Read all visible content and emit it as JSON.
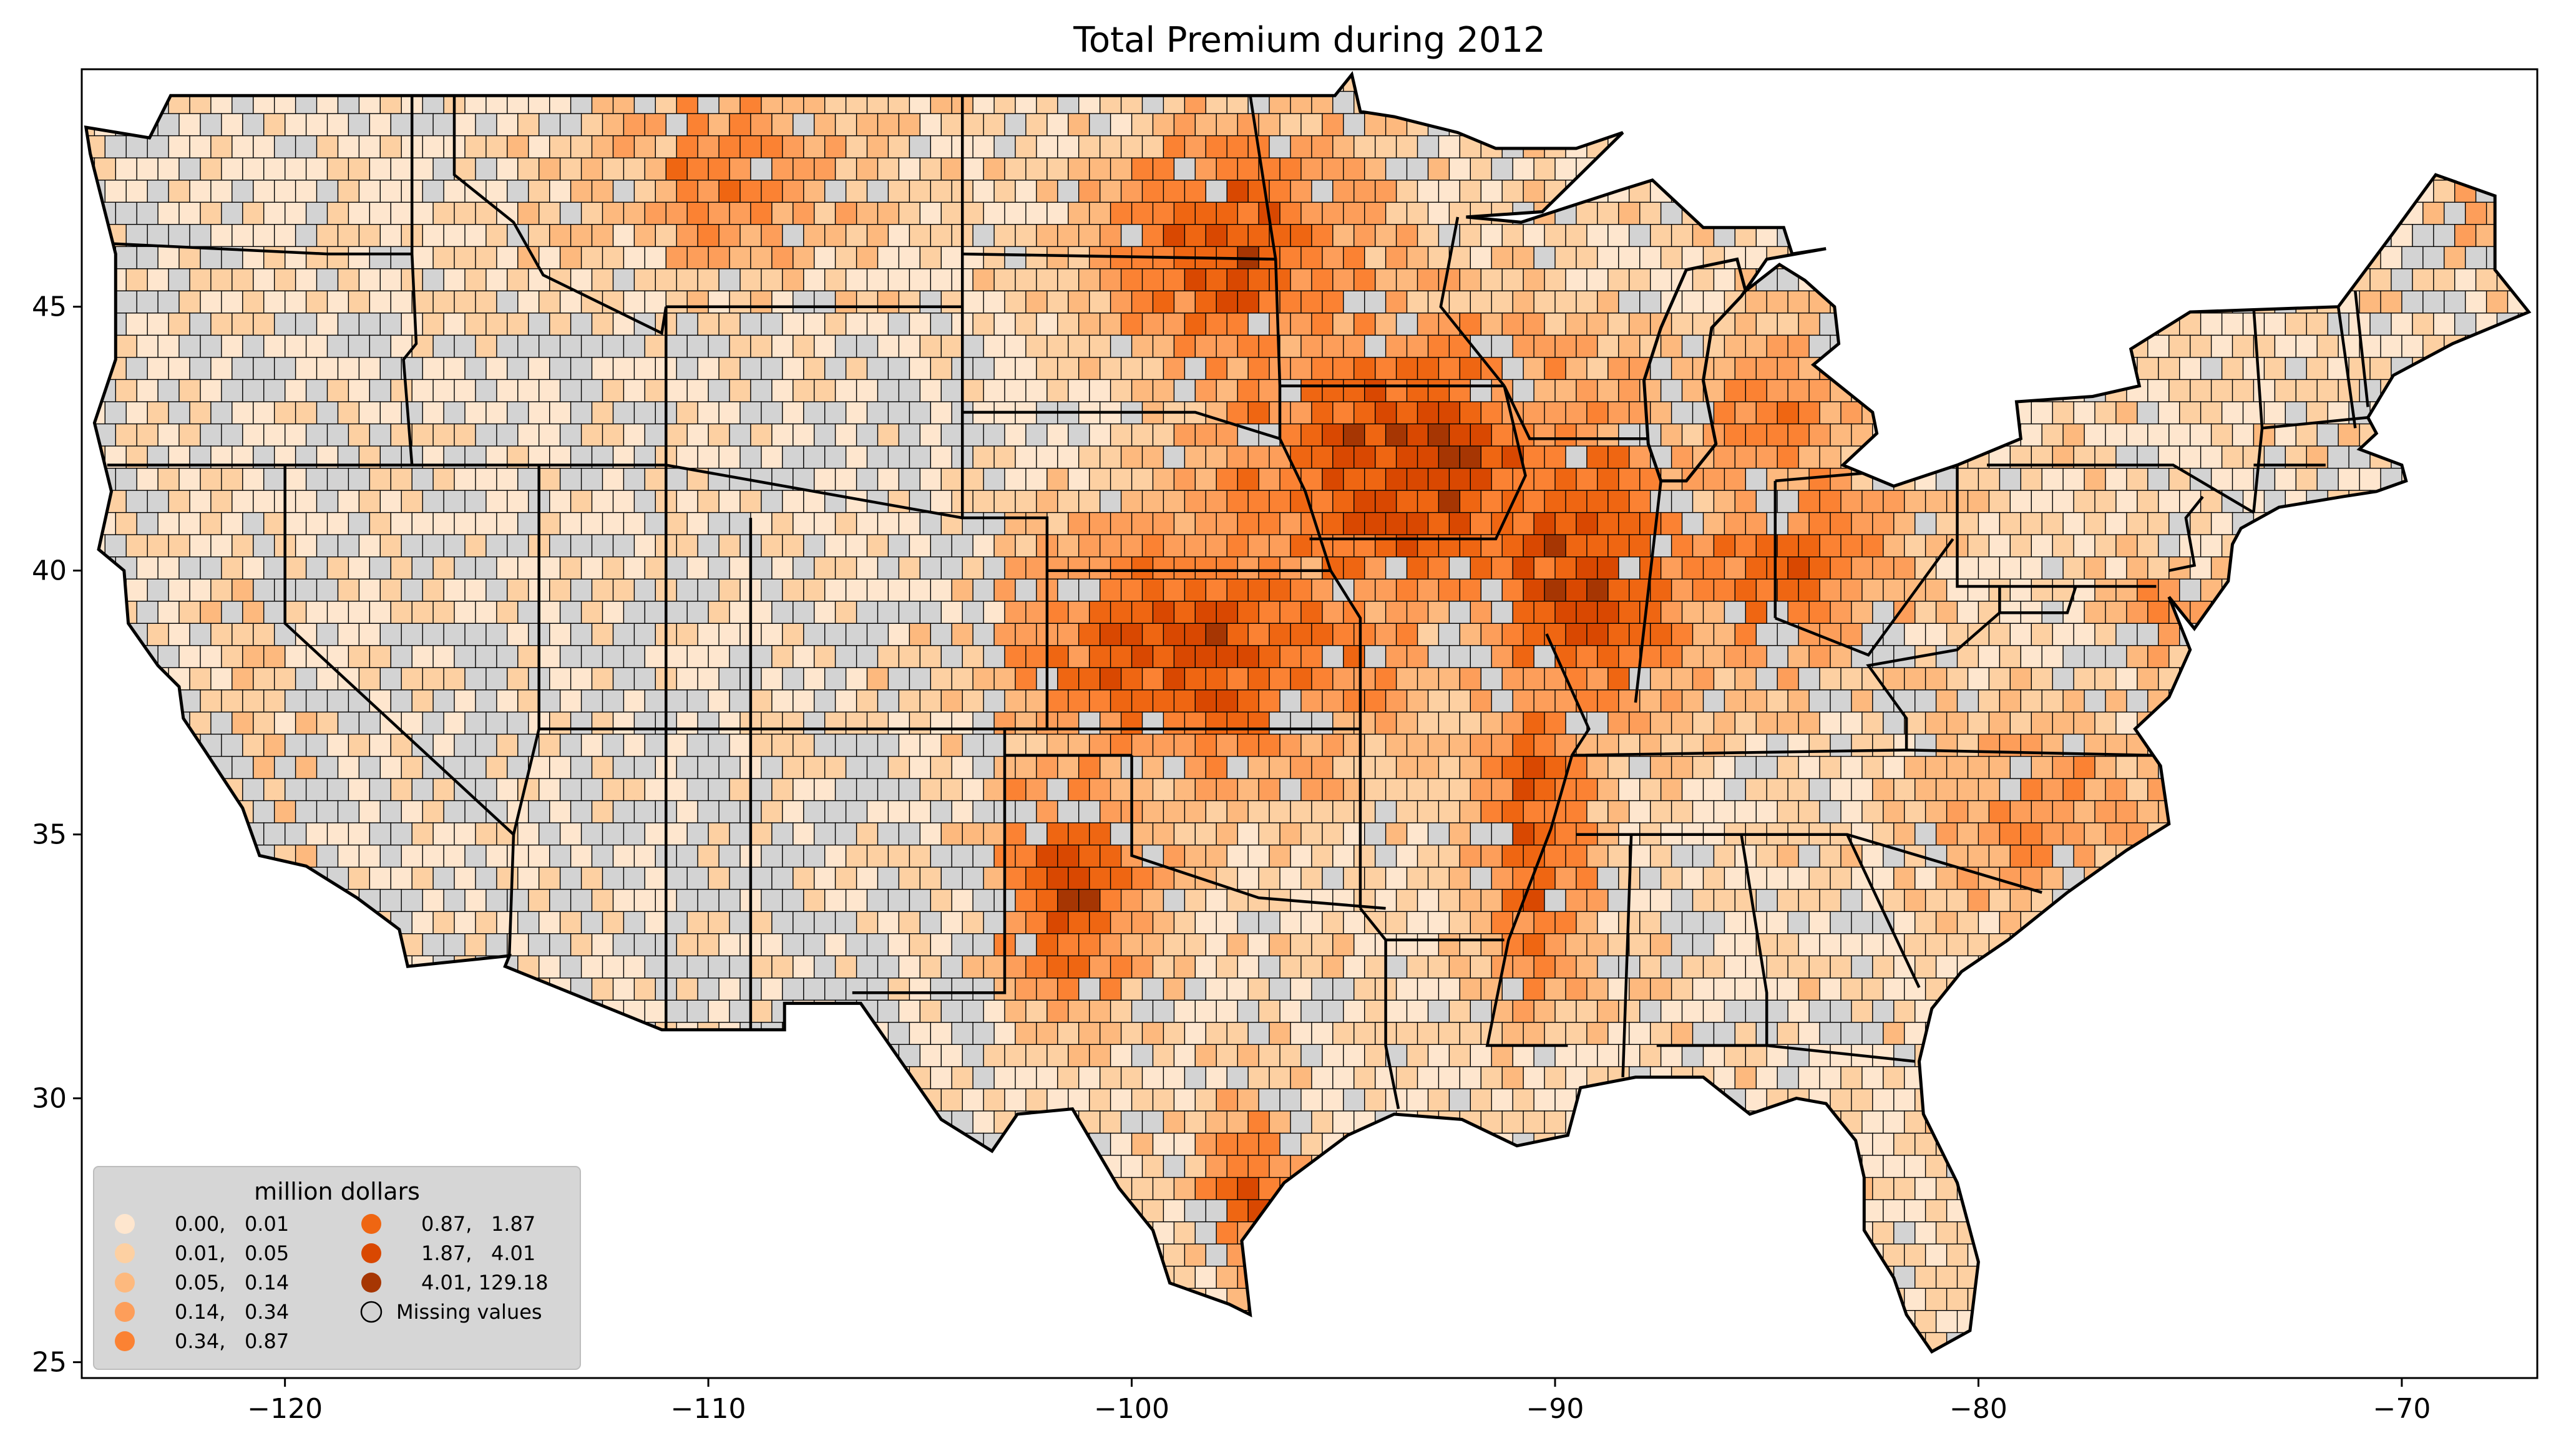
{
  "title": "Total  Premium during 2012",
  "map": {
    "type": "choropleth",
    "region": "contiguous United States, by county",
    "xlim": [
      -124.8,
      -66.8
    ],
    "ylim": [
      24.7,
      49.5
    ],
    "x_ticks": [
      "−120",
      "−110",
      "−100",
      "−90",
      "−80",
      "−70"
    ],
    "y_ticks": [
      "25",
      "30",
      "35",
      "40",
      "45"
    ],
    "missing_color": "#d3d3d3",
    "border_color": "#000000"
  },
  "legend": {
    "title": "million dollars",
    "placement": "lower-left",
    "items": [
      {
        "label": "0.00,   0.01",
        "color": "#fee6ce"
      },
      {
        "label": "0.01,   0.05",
        "color": "#fdd0a2"
      },
      {
        "label": "0.05,   0.14",
        "color": "#fdb97e"
      },
      {
        "label": "0.14,   0.34",
        "color": "#fd9e5a"
      },
      {
        "label": "0.34,   0.87",
        "color": "#fb8233"
      },
      {
        "label": "0.87,   1.87",
        "color": "#ef6612"
      },
      {
        "label": "1.87,   4.01",
        "color": "#d94801"
      },
      {
        "label": "4.01, 129.18",
        "color": "#a63603"
      },
      {
        "label": "Missing values",
        "color": "#d3d3d3"
      }
    ]
  }
}
